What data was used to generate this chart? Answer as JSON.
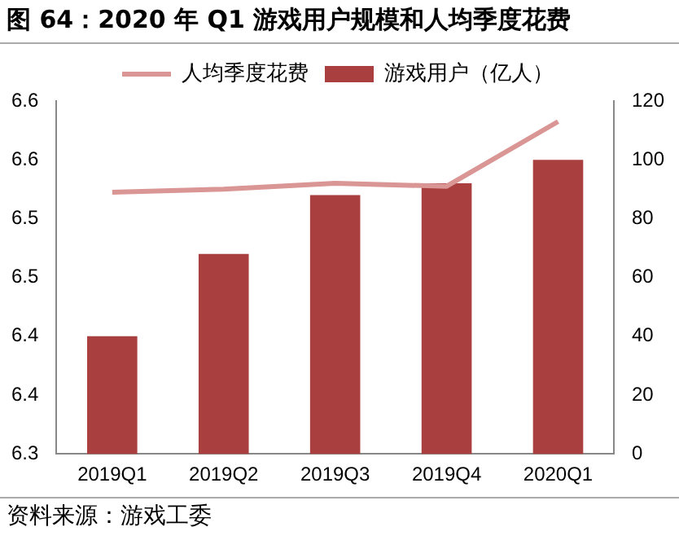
{
  "chart_data": {
    "type": "bar",
    "title": "图 64：2020 年 Q1 游戏用户规模和人均季度花费",
    "categories": [
      "2019Q1",
      "2019Q2",
      "2019Q3",
      "2019Q4",
      "2020Q1"
    ],
    "series": [
      {
        "name": "游戏用户（亿人）",
        "color": "#a9403f",
        "values": [
          6.4,
          6.47,
          6.52,
          6.53,
          6.55
        ]
      },
      {
        "name": "人均季度花费",
        "type": "line",
        "axis": "y2",
        "color": "#d99694",
        "values": [
          89,
          90,
          92,
          91,
          113
        ]
      }
    ],
    "ylim": [
      6.3,
      6.6
    ],
    "yticks": [
      {
        "value": 6.3,
        "label": "6.3"
      },
      {
        "value": 6.35,
        "label": "6.4"
      },
      {
        "value": 6.4,
        "label": "6.4"
      },
      {
        "value": 6.45,
        "label": "6.5"
      },
      {
        "value": 6.5,
        "label": "6.5"
      },
      {
        "value": 6.55,
        "label": "6.6"
      },
      {
        "value": 6.6,
        "label": "6.6"
      }
    ],
    "y2lim": [
      0,
      120
    ],
    "y2ticks": [
      0,
      20,
      40,
      60,
      80,
      100,
      120
    ],
    "grid": false,
    "legend": "top",
    "marker": "none",
    "line_style": "solid",
    "annotations": [
      "资料来源：游戏工委"
    ]
  }
}
